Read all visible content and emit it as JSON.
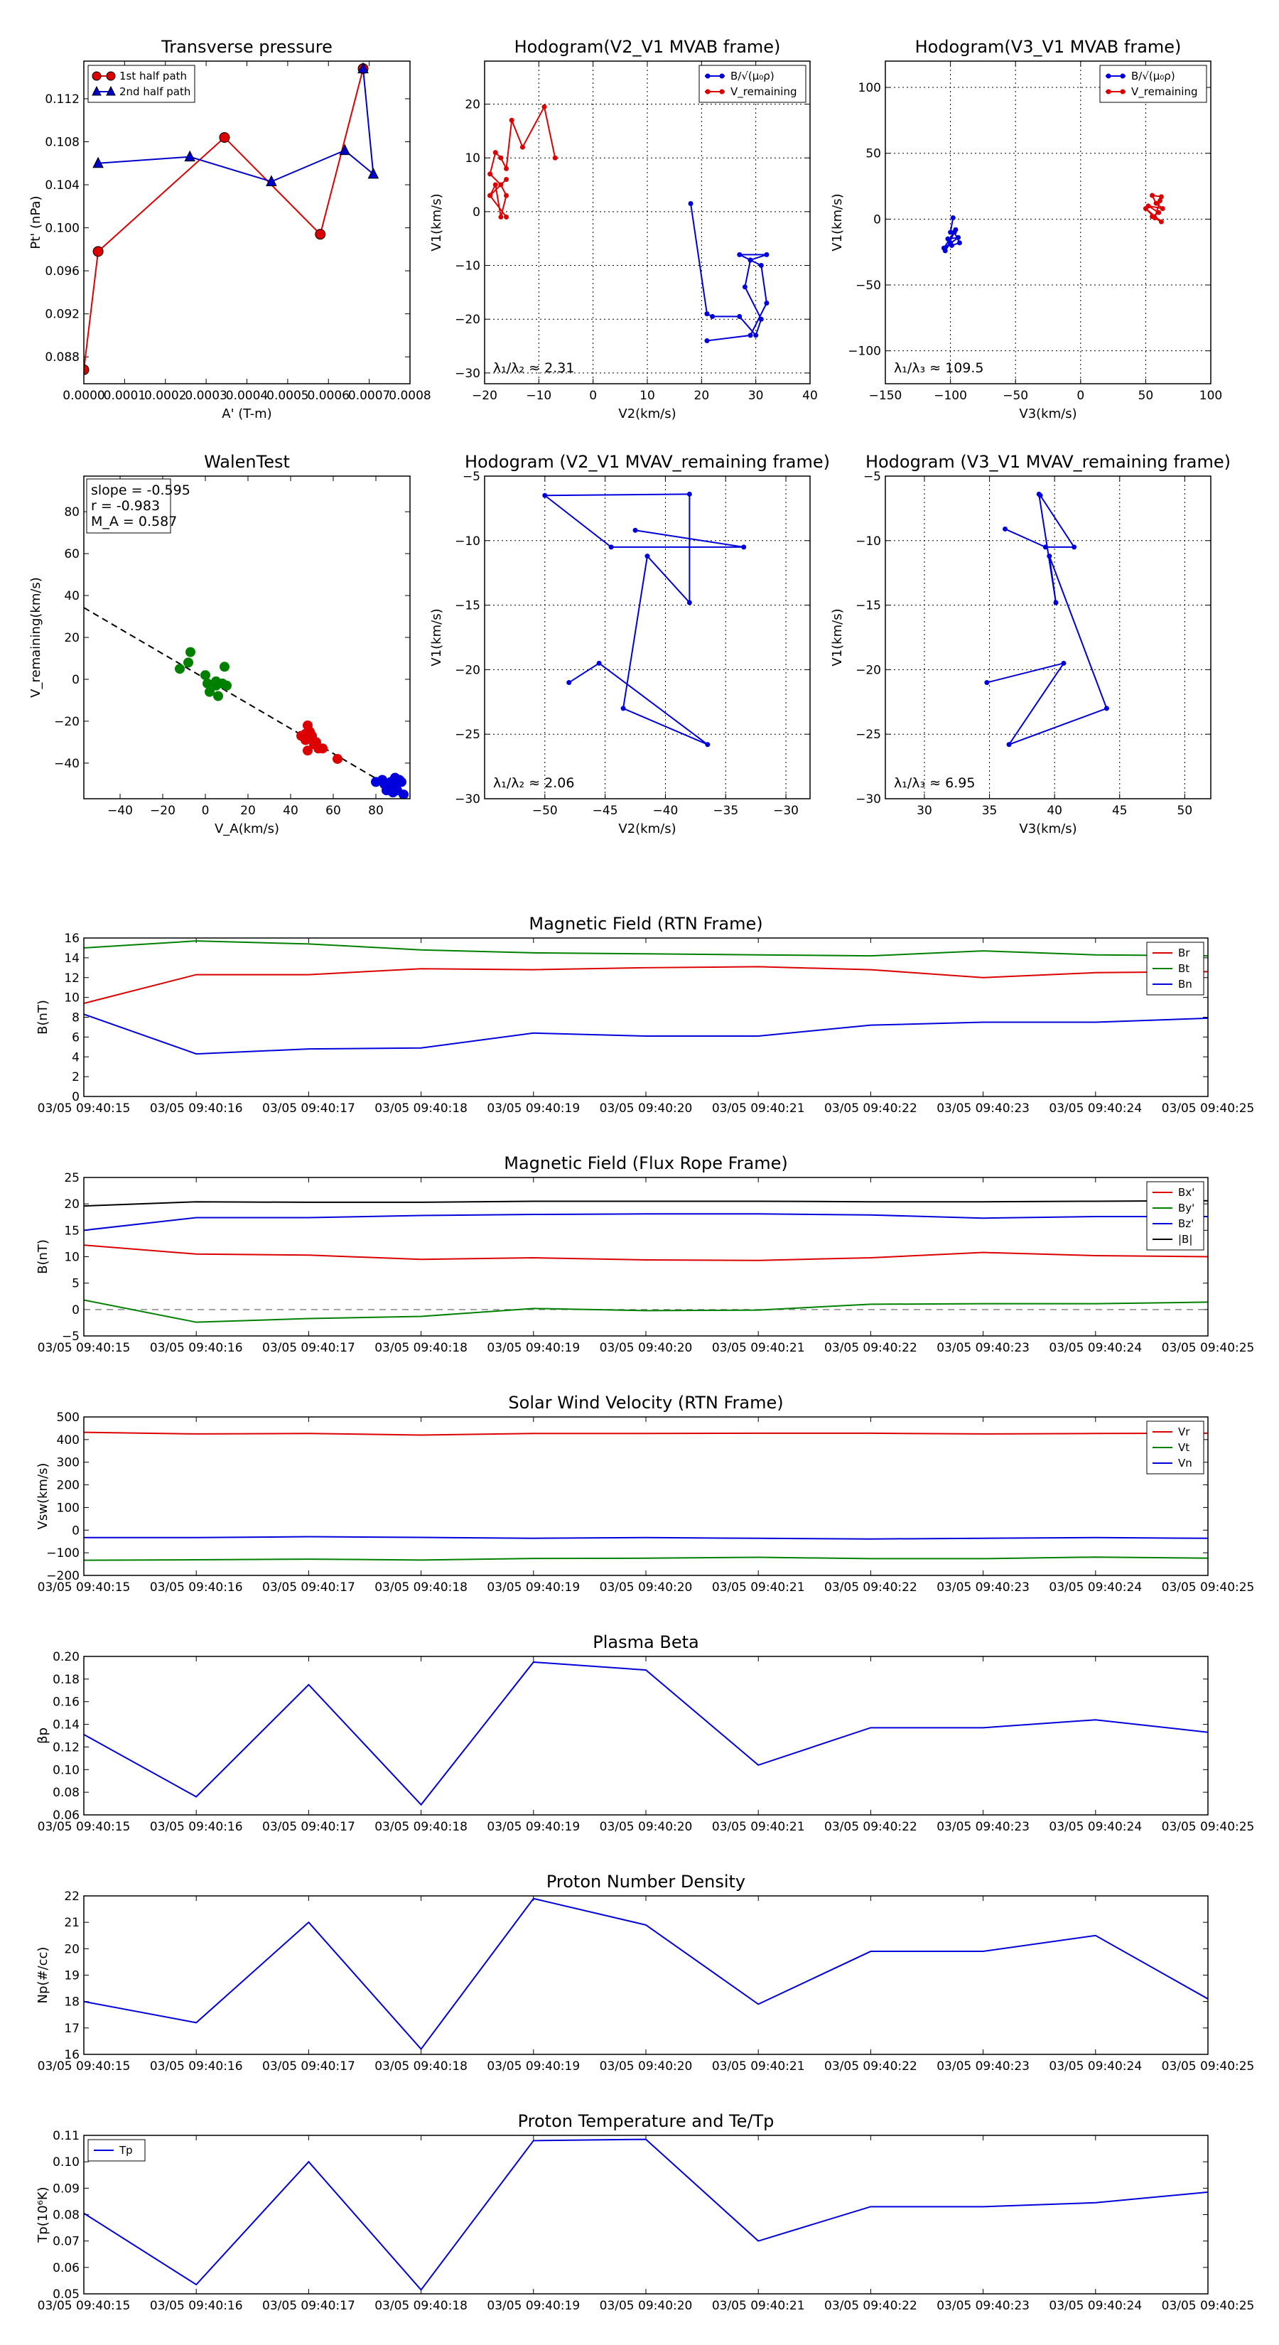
{
  "chart_data": [
    {
      "id": "transverse-pressure",
      "type": "line",
      "title": "Transverse pressure",
      "xlabel": "A' (T-m)",
      "ylabel": "Pt' (nPa)",
      "xlim": [
        0.0,
        0.0008
      ],
      "ylim": [
        0.0855,
        0.1155
      ],
      "xticks": [
        0.0,
        0.0001,
        0.0002,
        0.0003,
        0.0004,
        0.0005,
        0.0006,
        0.0007,
        0.0008
      ],
      "xtick_labels": [
        "0.0000",
        "0.0001",
        "0.0002",
        "0.0003",
        "0.0004",
        "0.0005",
        "0.0006",
        "0.0007",
        "0.0008"
      ],
      "yticks": [
        0.088,
        0.092,
        0.096,
        0.1,
        0.104,
        0.108,
        0.112
      ],
      "ytick_labels": [
        "0.088",
        "0.092",
        "0.096",
        "0.100",
        "0.104",
        "0.108",
        "0.112"
      ],
      "grid": false,
      "legend_position": "top-left",
      "series": [
        {
          "name": "1st half path",
          "color": "#dd0000",
          "marker": "circle",
          "x": [
            0.0,
            3.5e-05,
            0.000345,
            0.00058,
            0.000685
          ],
          "y": [
            0.0868,
            0.0978,
            0.1084,
            0.0994,
            0.1148
          ]
        },
        {
          "name": "2nd half path",
          "color": "#0000cc",
          "marker": "triangle",
          "x": [
            0.000685,
            0.00071,
            0.00064,
            0.00046,
            0.00026,
            3.5e-05
          ],
          "y": [
            0.1148,
            0.105,
            0.1072,
            0.1043,
            0.1066,
            0.106
          ]
        }
      ]
    },
    {
      "id": "hodogram-v2-v1-mvab",
      "type": "line",
      "title": "Hodogram(V2_V1 MVAB frame)",
      "xlabel": "V2(km/s)",
      "ylabel": "V1(km/s)",
      "xlim": [
        -20,
        40
      ],
      "ylim": [
        -32,
        28
      ],
      "xticks": [
        -20,
        -10,
        0,
        10,
        20,
        30,
        40
      ],
      "yticks": [
        -30,
        -20,
        -10,
        0,
        10,
        20
      ],
      "grid": true,
      "legend_position": "top-right",
      "annotation": "λ₁/λ₂ ≈ 2.31",
      "series": [
        {
          "name": "B/√(μ₀ρ)",
          "color": "#0000dd",
          "x": [
            18,
            21,
            22,
            27,
            30,
            31,
            28,
            29,
            27,
            32,
            29,
            31,
            32,
            29,
            21
          ],
          "y": [
            1.5,
            -19,
            -19.5,
            -19.5,
            -23,
            -20,
            -14,
            -9,
            -8,
            -8,
            -9,
            -10,
            -17,
            -23,
            -24
          ]
        },
        {
          "name": "V_remaining",
          "color": "#dd0000",
          "x": [
            -7,
            -9,
            -13,
            -15,
            -16,
            -17,
            -18,
            -19,
            -17,
            -16,
            -17,
            -18,
            -19,
            -16,
            -19,
            -16
          ],
          "y": [
            10,
            19.5,
            12,
            17,
            8,
            10,
            11,
            7,
            5,
            3,
            -1,
            5,
            3,
            6,
            3,
            -1
          ]
        }
      ]
    },
    {
      "id": "hodogram-v3-v1-mvab",
      "type": "line",
      "title": "Hodogram(V3_V1 MVAB frame)",
      "xlabel": "V3(km/s)",
      "ylabel": "V1(km/s)",
      "xlim": [
        -150,
        100
      ],
      "ylim": [
        -125,
        120
      ],
      "xticks": [
        -150,
        -100,
        -50,
        0,
        50,
        100
      ],
      "yticks": [
        -100,
        -50,
        0,
        50,
        100
      ],
      "grid": true,
      "legend_position": "top-right",
      "annotation": "λ₁/λ₃ ≈ 109.5",
      "series": [
        {
          "name": "B/√(μ₀ρ)",
          "color": "#0000dd",
          "x": [
            -98,
            -100,
            -96,
            -105,
            -94,
            -102,
            -99,
            -93,
            -97,
            -104,
            -100
          ],
          "y": [
            1,
            -10,
            -8,
            -22,
            -14,
            -15,
            -20,
            -18,
            -10,
            -24,
            -18
          ]
        },
        {
          "name": "V_remaining",
          "color": "#dd0000",
          "x": [
            62,
            55,
            58,
            63,
            52,
            60,
            55,
            62,
            50,
            57,
            61
          ],
          "y": [
            17,
            18,
            12,
            8,
            10,
            5,
            2,
            -2,
            8,
            1,
            14
          ]
        }
      ]
    },
    {
      "id": "walen-test",
      "type": "scatter",
      "title": "WalenTest",
      "xlabel": "V_A(km/s)",
      "ylabel": "V_remaining(km/s)",
      "xlim": [
        -57,
        96
      ],
      "ylim": [
        -57,
        97
      ],
      "xticks": [
        -40,
        -20,
        0,
        20,
        40,
        60,
        80
      ],
      "yticks": [
        -40,
        -20,
        0,
        20,
        40,
        60,
        80
      ],
      "grid": false,
      "annotation_lines": [
        "slope = -0.595",
        "r = -0.983",
        "M_A = 0.587"
      ],
      "fit_line": {
        "x": [
          -57,
          80
        ],
        "y": [
          34.2,
          -47.3
        ]
      },
      "series": [
        {
          "name": "green",
          "color": "#008000",
          "x": [
            -12,
            -8,
            -7,
            0,
            1,
            2,
            5,
            5,
            6,
            8,
            9,
            10
          ],
          "y": [
            5,
            8,
            13,
            2,
            -2,
            -6,
            -1,
            -3,
            -8,
            -2,
            6,
            -3
          ]
        },
        {
          "name": "red",
          "color": "#dd0000",
          "x": [
            45,
            47,
            48,
            49,
            50,
            51,
            52,
            53,
            55,
            48,
            50,
            47,
            62
          ],
          "y": [
            -27,
            -29,
            -22,
            -25,
            -28,
            -31,
            -30,
            -33,
            -33,
            -34,
            -27,
            -26,
            -38
          ]
        },
        {
          "name": "blue",
          "color": "#0000dd",
          "x": [
            80,
            83,
            84,
            86,
            87,
            88,
            89,
            90,
            91,
            92,
            93,
            85,
            88
          ],
          "y": [
            -49,
            -48,
            -50,
            -52,
            -49,
            -51,
            -47,
            -53,
            -48,
            -49,
            -55,
            -53,
            -54
          ]
        }
      ]
    },
    {
      "id": "hodogram-v2-v1-mvav",
      "type": "line",
      "title": "Hodogram (V2_V1 MVAV_remaining frame)",
      "xlabel": "V2(km/s)",
      "ylabel": "V1(km/s)",
      "xlim": [
        -55,
        -28
      ],
      "ylim": [
        -30,
        -5
      ],
      "xticks": [
        -50,
        -45,
        -40,
        -35,
        -30
      ],
      "yticks": [
        -30,
        -25,
        -20,
        -15,
        -10,
        -5
      ],
      "grid": true,
      "annotation": "λ₁/λ₂ ≈ 2.06",
      "series": [
        {
          "name": "path",
          "color": "#0000dd",
          "x": [
            -48,
            -45.5,
            -36.5,
            -43.5,
            -41.5,
            -38,
            -38,
            -50,
            -44.5,
            -33.5,
            -42.5
          ],
          "y": [
            -21,
            -19.5,
            -25.8,
            -23,
            -11.2,
            -14.8,
            -6.4,
            -6.5,
            -10.5,
            -10.5,
            -9.2
          ]
        }
      ]
    },
    {
      "id": "hodogram-v3-v1-mvav",
      "type": "line",
      "title": "Hodogram (V3_V1 MVAV_remaining frame)",
      "xlabel": "V3(km/s)",
      "ylabel": "V1(km/s)",
      "xlim": [
        27,
        52
      ],
      "ylim": [
        -30,
        -5
      ],
      "xticks": [
        30,
        35,
        40,
        45,
        50
      ],
      "yticks": [
        -30,
        -25,
        -20,
        -15,
        -10,
        -5
      ],
      "grid": true,
      "annotation": "λ₁/λ₃ ≈ 6.95",
      "series": [
        {
          "name": "path",
          "color": "#0000dd",
          "x": [
            34.8,
            40.7,
            36.5,
            44,
            39.6,
            40.1,
            38.8,
            38.9,
            41.5,
            39.3,
            36.2
          ],
          "y": [
            -21,
            -19.5,
            -25.8,
            -23,
            -11.2,
            -14.8,
            -6.4,
            -6.5,
            -10.5,
            -10.5,
            -9.1
          ]
        }
      ]
    },
    {
      "id": "magnetic-field-rtn",
      "type": "line",
      "title": "Magnetic Field (RTN Frame)",
      "xlabel": "",
      "ylabel": "B(nT)",
      "ylim": [
        0,
        16
      ],
      "yticks": [
        0,
        2,
        4,
        6,
        8,
        10,
        12,
        14,
        16
      ],
      "grid": false,
      "legend_position": "right",
      "series": [
        {
          "name": "Br",
          "color": "#dd0000",
          "values": [
            9.4,
            12.3,
            12.3,
            12.9,
            12.8,
            13.0,
            13.1,
            12.8,
            12.0,
            12.5,
            12.6
          ]
        },
        {
          "name": "Bt",
          "color": "#008000",
          "values": [
            15.0,
            15.7,
            15.4,
            14.8,
            14.5,
            14.4,
            14.3,
            14.2,
            14.7,
            14.3,
            14.2
          ]
        },
        {
          "name": "Bn",
          "color": "#0000dd",
          "values": [
            8.3,
            4.3,
            4.8,
            4.9,
            6.4,
            6.1,
            6.1,
            7.2,
            7.5,
            7.5,
            7.9
          ]
        }
      ]
    },
    {
      "id": "magnetic-field-flux-rope",
      "type": "line",
      "title": "Magnetic Field (Flux Rope Frame)",
      "xlabel": "",
      "ylabel": "B(nT)",
      "ylim": [
        -5,
        25
      ],
      "yticks": [
        -5,
        0,
        5,
        10,
        15,
        20,
        25
      ],
      "grid": false,
      "legend_position": "right",
      "series": [
        {
          "name": "Bx'",
          "color": "#dd0000",
          "values": [
            12.2,
            10.5,
            10.3,
            9.5,
            9.8,
            9.4,
            9.3,
            9.8,
            10.8,
            10.2,
            10.0
          ]
        },
        {
          "name": "By'",
          "color": "#008000",
          "values": [
            1.8,
            -2.4,
            -1.7,
            -1.3,
            0.2,
            -0.2,
            -0.1,
            1.0,
            1.1,
            1.1,
            1.4
          ]
        },
        {
          "name": "Bz'",
          "color": "#0000dd",
          "values": [
            15.0,
            17.4,
            17.4,
            17.8,
            18.0,
            18.1,
            18.1,
            17.9,
            17.3,
            17.6,
            17.6
          ]
        },
        {
          "name": "|B|",
          "color": "#000000",
          "values": [
            19.6,
            20.4,
            20.3,
            20.3,
            20.5,
            20.5,
            20.5,
            20.4,
            20.4,
            20.5,
            20.6
          ]
        }
      ],
      "reference_line": 0
    },
    {
      "id": "solar-wind-velocity",
      "type": "line",
      "title": "Solar Wind Velocity (RTN Frame)",
      "xlabel": "",
      "ylabel": "Vsw(km/s)",
      "ylim": [
        -200,
        500
      ],
      "yticks": [
        -200,
        -100,
        0,
        100,
        200,
        300,
        400,
        500
      ],
      "grid": false,
      "legend_position": "right",
      "series": [
        {
          "name": "Vr",
          "color": "#dd0000",
          "values": [
            432,
            425,
            427,
            420,
            427,
            427,
            428,
            428,
            425,
            427,
            428
          ]
        },
        {
          "name": "Vt",
          "color": "#008000",
          "values": [
            -133,
            -131,
            -128,
            -132,
            -125,
            -124,
            -120,
            -126,
            -126,
            -119,
            -124
          ]
        },
        {
          "name": "Vn",
          "color": "#0000dd",
          "values": [
            -33,
            -33,
            -29,
            -32,
            -36,
            -33,
            -36,
            -39,
            -36,
            -33,
            -36
          ]
        }
      ]
    },
    {
      "id": "plasma-beta",
      "type": "line",
      "title": "Plasma Beta",
      "xlabel": "",
      "ylabel": "βp",
      "ylim": [
        0.06,
        0.2
      ],
      "yticks": [
        0.06,
        0.08,
        0.1,
        0.12,
        0.14,
        0.16,
        0.18,
        0.2
      ],
      "ytick_labels": [
        "0.06",
        "0.08",
        "0.10",
        "0.12",
        "0.14",
        "0.16",
        "0.18",
        "0.20"
      ],
      "grid": false,
      "series": [
        {
          "name": "beta",
          "color": "#0000dd",
          "values": [
            0.131,
            0.076,
            0.175,
            0.069,
            0.195,
            0.188,
            0.104,
            0.137,
            0.137,
            0.144,
            0.133
          ]
        }
      ]
    },
    {
      "id": "proton-number-density",
      "type": "line",
      "title": "Proton Number Density",
      "xlabel": "",
      "ylabel": "Np(#/cc)",
      "ylim": [
        16,
        22
      ],
      "yticks": [
        16,
        17,
        18,
        19,
        20,
        21,
        22
      ],
      "grid": false,
      "series": [
        {
          "name": "Np",
          "color": "#0000dd",
          "values": [
            18.0,
            17.2,
            21.0,
            16.2,
            21.9,
            20.9,
            17.9,
            19.9,
            19.9,
            20.5,
            18.1
          ]
        }
      ]
    },
    {
      "id": "proton-temperature",
      "type": "line",
      "title": "Proton Temperature and Te/Tp",
      "xlabel": "",
      "ylabel": "Tp(10⁶K)",
      "ylim": [
        0.05,
        0.11
      ],
      "yticks": [
        0.05,
        0.06,
        0.07,
        0.08,
        0.09,
        0.1,
        0.11
      ],
      "ytick_labels": [
        "0.05",
        "0.06",
        "0.07",
        "0.08",
        "0.09",
        "0.10",
        "0.11"
      ],
      "grid": false,
      "legend_position": "top-left",
      "series": [
        {
          "name": "Tp",
          "color": "#0000dd",
          "values": [
            0.0805,
            0.0535,
            0.1,
            0.0515,
            0.108,
            0.1085,
            0.07,
            0.083,
            0.083,
            0.0845,
            0.0885
          ]
        }
      ]
    }
  ],
  "time_axis": {
    "labels": [
      "03/05 09:40:15",
      "03/05 09:40:16",
      "03/05 09:40:17",
      "03/05 09:40:18",
      "03/05 09:40:19",
      "03/05 09:40:20",
      "03/05 09:40:21",
      "03/05 09:40:22",
      "03/05 09:40:23",
      "03/05 09:40:24",
      "03/05 09:40:25"
    ]
  }
}
